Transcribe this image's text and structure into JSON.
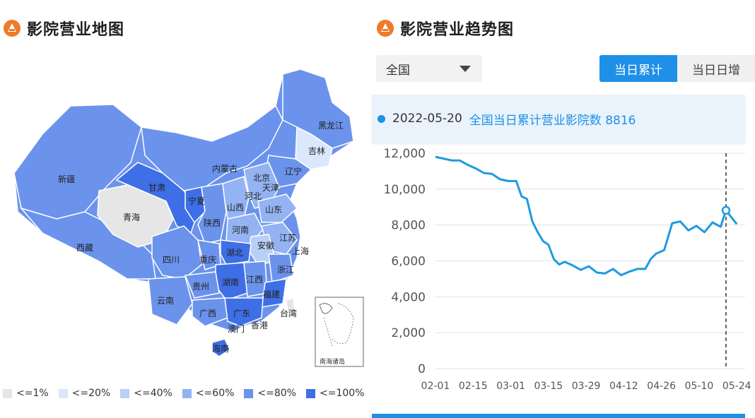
{
  "left": {
    "title": "影院营业地图",
    "legend": [
      {
        "label": "<=1%",
        "color": "#e6e6e6"
      },
      {
        "label": "<=20%",
        "color": "#dbe7fb"
      },
      {
        "label": "<=40%",
        "color": "#b9cff7"
      },
      {
        "label": "<=60%",
        "color": "#93b3f3"
      },
      {
        "label": "<=80%",
        "color": "#6b93ec"
      },
      {
        "label": "<=100%",
        "color": "#3f6fe6"
      }
    ],
    "provinces": [
      "新疆",
      "西藏",
      "青海",
      "甘肃",
      "内蒙古",
      "黑龙江",
      "吉林",
      "辽宁",
      "北京",
      "天津",
      "河北",
      "山西",
      "山东",
      "宁夏",
      "陕西",
      "河南",
      "江苏",
      "上海",
      "安徽",
      "湖北",
      "四川",
      "重庆",
      "浙江",
      "贵州",
      "湖南",
      "江西",
      "福建",
      "云南",
      "广西",
      "广东",
      "香港",
      "澳门",
      "台湾",
      "海南"
    ],
    "inset_label": "南海诸岛"
  },
  "right": {
    "title": "影院营业趋势图",
    "region_select": "全国",
    "tabs": [
      "当日累计",
      "当日日增"
    ],
    "active_tab": "当日累计",
    "tooltip": {
      "date": "2022-05-20",
      "text": "全国当日累计营业影院数 8816"
    }
  },
  "colors": {
    "accent": "#1e90e8",
    "line": "#1e9be0"
  },
  "chart_data": {
    "type": "line",
    "title": "",
    "xlabel": "",
    "ylabel": "",
    "x_ticks": [
      "02-01",
      "02-15",
      "03-01",
      "03-15",
      "03-29",
      "04-12",
      "04-26",
      "05-10",
      "05-24"
    ],
    "y_ticks": [
      "0",
      "2,000",
      "4,000",
      "6,000",
      "8,000",
      "10,000",
      "12,000"
    ],
    "ylim": [
      0,
      12000
    ],
    "grid": true,
    "highlight": {
      "date": "2022-05-20",
      "value": 8816
    },
    "series": [
      {
        "x": [
          "2022-02-01",
          "2022-02-04",
          "2022-02-07",
          "2022-02-10",
          "2022-02-13",
          "2022-02-16",
          "2022-02-19",
          "2022-02-22",
          "2022-02-25",
          "2022-02-28",
          "2022-03-03",
          "2022-03-05",
          "2022-03-07",
          "2022-03-09",
          "2022-03-11",
          "2022-03-13",
          "2022-03-15",
          "2022-03-17",
          "2022-03-19",
          "2022-03-21",
          "2022-03-24",
          "2022-03-27",
          "2022-03-30",
          "2022-04-02",
          "2022-04-05",
          "2022-04-08",
          "2022-04-11",
          "2022-04-14",
          "2022-04-17",
          "2022-04-20",
          "2022-04-22",
          "2022-04-24",
          "2022-04-27",
          "2022-04-30",
          "2022-05-03",
          "2022-05-06",
          "2022-05-09",
          "2022-05-12",
          "2022-05-15",
          "2022-05-18",
          "2022-05-20",
          "2022-05-24"
        ],
        "values": [
          11800,
          11700,
          11600,
          11600,
          11350,
          11150,
          10900,
          10850,
          10550,
          10450,
          10450,
          9600,
          9450,
          8200,
          7600,
          7100,
          6900,
          6100,
          5800,
          5950,
          5750,
          5500,
          5700,
          5350,
          5300,
          5550,
          5200,
          5400,
          5550,
          5550,
          6100,
          6400,
          6600,
          8100,
          8200,
          7700,
          7950,
          7600,
          8150,
          7900,
          8816,
          8050
        ]
      }
    ]
  }
}
